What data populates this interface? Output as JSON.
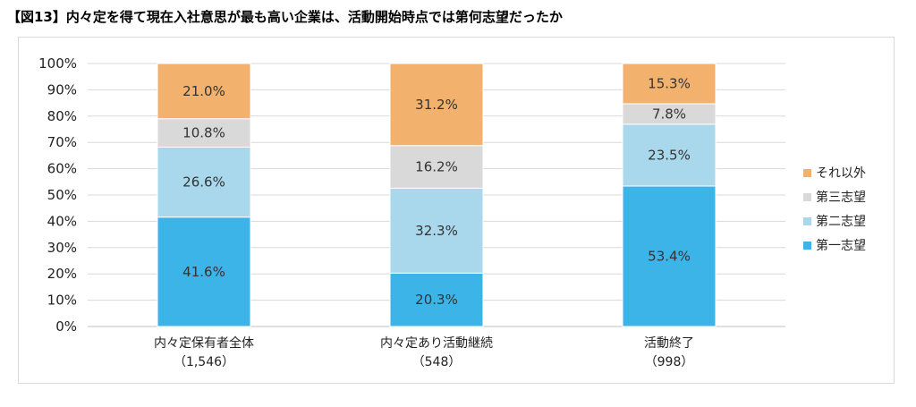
{
  "title": "【図13】内々定を得て現在入社意思が最も高い企業は、活動開始時点では第何志望だったか",
  "chart_data": {
    "type": "bar",
    "stacked": true,
    "categories": [
      "内々定保有者全体",
      "内々定あり活動継続",
      "活動終了"
    ],
    "category_counts": [
      "（1,546）",
      "（548）",
      "（998）"
    ],
    "ylim": [
      0,
      100
    ],
    "yticks": [
      "0%",
      "10%",
      "20%",
      "30%",
      "40%",
      "50%",
      "60%",
      "70%",
      "80%",
      "90%",
      "100%"
    ],
    "grid": true,
    "legend_position": "right",
    "series": [
      {
        "name": "第一志望",
        "values": [
          41.6,
          20.3,
          53.4
        ],
        "labels": [
          "41.6%",
          "20.3%",
          "53.4%"
        ],
        "color": "#3cb4e8"
      },
      {
        "name": "第二志望",
        "values": [
          26.6,
          32.3,
          23.5
        ],
        "labels": [
          "26.6%",
          "32.3%",
          "23.5%"
        ],
        "color": "#a9d8ec"
      },
      {
        "name": "第三志望",
        "values": [
          10.8,
          16.2,
          7.8
        ],
        "labels": [
          "10.8%",
          "16.2%",
          "7.8%"
        ],
        "color": "#d9d9d9"
      },
      {
        "name": "それ以外",
        "values": [
          21.0,
          31.2,
          15.3
        ],
        "labels": [
          "21.0%",
          "31.2%",
          "15.3%"
        ],
        "color": "#f2b26e"
      }
    ]
  }
}
